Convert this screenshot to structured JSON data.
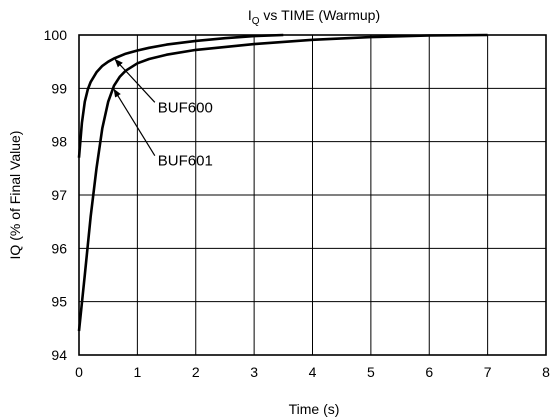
{
  "chart_data": {
    "type": "line",
    "title": {
      "main": "I",
      "subscript": "Q",
      "rest": " vs TIME (Warmup)"
    },
    "xlabel": "Time (s)",
    "ylabel": "IQ (% of Final Value)",
    "xlim": [
      0,
      8
    ],
    "ylim": [
      94,
      100
    ],
    "x_ticks": [
      "0",
      "1",
      "2",
      "3",
      "4",
      "5",
      "6",
      "7",
      "8"
    ],
    "y_ticks": [
      "94",
      "95",
      "96",
      "97",
      "98",
      "99",
      "100"
    ],
    "grid": true,
    "series": [
      {
        "name": "BUF600",
        "x": [
          0,
          0.05,
          0.1,
          0.15,
          0.2,
          0.3,
          0.4,
          0.5,
          0.6,
          0.8,
          1.0,
          1.2,
          1.5,
          2.0,
          2.5,
          3.0,
          3.5
        ],
        "y": [
          97.7,
          98.35,
          98.75,
          98.98,
          99.12,
          99.3,
          99.42,
          99.5,
          99.56,
          99.65,
          99.71,
          99.76,
          99.82,
          99.89,
          99.94,
          99.98,
          100.0
        ]
      },
      {
        "name": "BUF601",
        "x": [
          0,
          0.1,
          0.2,
          0.3,
          0.4,
          0.5,
          0.6,
          0.7,
          0.8,
          1.0,
          1.2,
          1.5,
          2.0,
          3.0,
          4.0,
          5.0,
          6.0,
          7.0
        ],
        "y": [
          94.45,
          95.5,
          96.6,
          97.5,
          98.25,
          98.75,
          99.05,
          99.22,
          99.33,
          99.47,
          99.55,
          99.63,
          99.72,
          99.83,
          99.91,
          99.96,
          99.99,
          100.0
        ]
      }
    ],
    "annotations": [
      {
        "text": "BUF600",
        "series": "BUF600",
        "x": 1.35,
        "y": 98.55,
        "arrow_to": [
          0.62,
          99.54
        ]
      },
      {
        "text": "BUF601",
        "series": "BUF601",
        "x": 1.35,
        "y": 97.55,
        "arrow_to": [
          0.6,
          98.98
        ]
      }
    ]
  }
}
